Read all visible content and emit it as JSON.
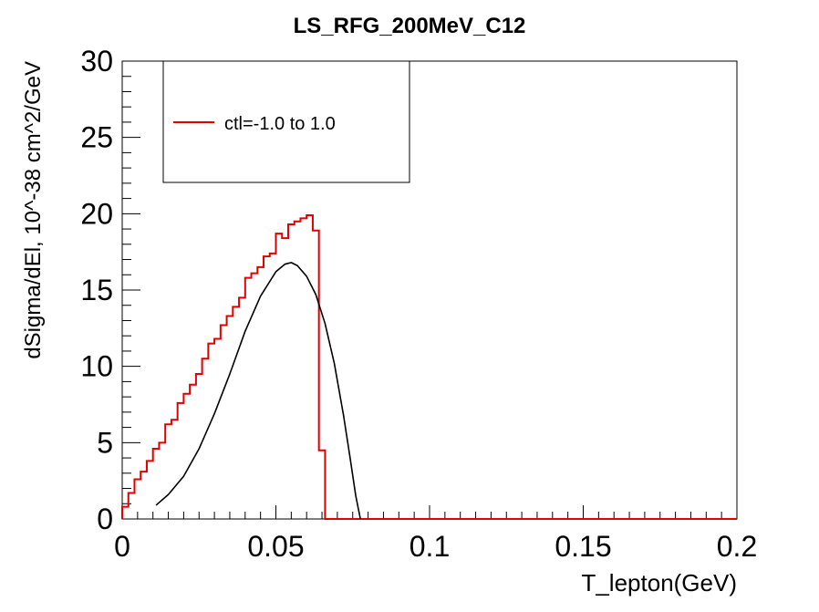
{
  "chart_data": {
    "type": "line",
    "title": "LS_RFG_200MeV_C12",
    "xlabel": "T_lepton(GeV)",
    "ylabel": "dSigma/dEl, 10^-38 cm^2/GeV",
    "xlim": [
      0,
      0.2
    ],
    "ylim": [
      0,
      30
    ],
    "x_ticks": [
      "0",
      "0.05",
      "0.1",
      "0.15",
      "0.2"
    ],
    "y_ticks": [
      "0",
      "5",
      "10",
      "15",
      "20",
      "25",
      "30"
    ],
    "grid": false,
    "legend_position": "top-left",
    "colors": {
      "histogram": "#e00000",
      "curve": "#000000",
      "axes": "#000000"
    },
    "series": [
      {
        "name": "ctl=-1.0 to 1.0",
        "style": "step",
        "bin_width": 0.002,
        "bin_start": 0,
        "values": [
          0.8,
          1.7,
          2.6,
          3.1,
          3.8,
          4.6,
          5.0,
          6.2,
          6.5,
          7.6,
          8.2,
          8.8,
          9.5,
          10.5,
          11.5,
          11.8,
          12.7,
          13.3,
          13.9,
          14.5,
          15.8,
          16.1,
          16.5,
          17.2,
          17.4,
          18.7,
          18.4,
          19.3,
          19.5,
          19.7,
          19.9,
          18.9,
          4.5,
          0,
          0,
          0,
          0,
          0,
          0,
          0,
          0,
          0,
          0,
          0,
          0,
          0,
          0,
          0,
          0,
          0,
          0,
          0,
          0,
          0,
          0,
          0,
          0,
          0,
          0,
          0,
          0,
          0,
          0,
          0,
          0,
          0,
          0,
          0,
          0,
          0,
          0,
          0,
          0,
          0,
          0,
          0,
          0,
          0,
          0,
          0,
          0,
          0,
          0,
          0,
          0,
          0,
          0,
          0,
          0,
          0,
          0,
          0,
          0,
          0,
          0,
          0,
          0,
          0,
          0,
          0
        ]
      },
      {
        "style": "smooth",
        "x": [
          0.011,
          0.015,
          0.02,
          0.025,
          0.03,
          0.035,
          0.04,
          0.045,
          0.05,
          0.053,
          0.055,
          0.057,
          0.06,
          0.063,
          0.066,
          0.069,
          0.072,
          0.074,
          0.076,
          0.0775
        ],
        "y": [
          0.9,
          1.6,
          2.8,
          4.6,
          6.9,
          9.5,
          12.3,
          14.6,
          16.2,
          16.7,
          16.8,
          16.6,
          15.9,
          14.7,
          12.8,
          10.2,
          6.8,
          4.2,
          1.5,
          0
        ]
      }
    ]
  }
}
